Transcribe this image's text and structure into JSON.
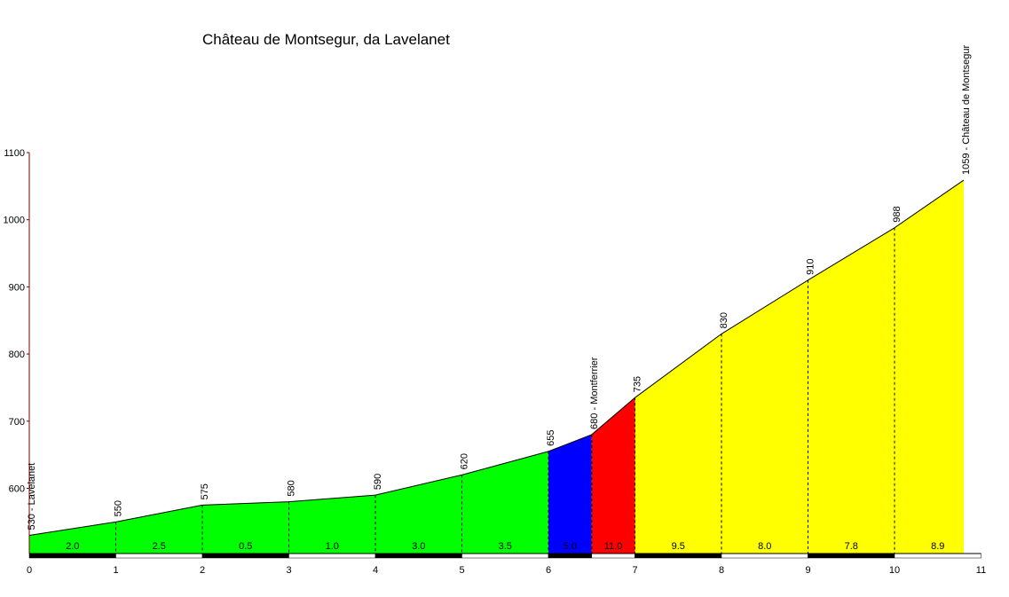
{
  "chart_data": {
    "type": "area",
    "title": "Château de Montsegur, da Lavelanet",
    "xlabel": "",
    "ylabel": "",
    "xlim": [
      0,
      11
    ],
    "ylim": [
      500,
      1100
    ],
    "x_ticks": [
      "0",
      "1",
      "2",
      "3",
      "4",
      "5",
      "6",
      "7",
      "8",
      "9",
      "10",
      "11"
    ],
    "y_ticks": [
      "600",
      "700",
      "800",
      "900",
      "1000",
      "1100"
    ],
    "profile": [
      {
        "x": 0,
        "y": 530
      },
      {
        "x": 1,
        "y": 550
      },
      {
        "x": 2,
        "y": 575
      },
      {
        "x": 3,
        "y": 580
      },
      {
        "x": 4,
        "y": 590
      },
      {
        "x": 5,
        "y": 620
      },
      {
        "x": 6,
        "y": 655
      },
      {
        "x": 6.5,
        "y": 680
      },
      {
        "x": 7,
        "y": 735
      },
      {
        "x": 8,
        "y": 830
      },
      {
        "x": 9,
        "y": 910
      },
      {
        "x": 10,
        "y": 988
      },
      {
        "x": 10.8,
        "y": 1059
      }
    ],
    "point_labels": [
      {
        "x": 0,
        "text": "530 - Lavelanet"
      },
      {
        "x": 1,
        "text": "550"
      },
      {
        "x": 2,
        "text": "575"
      },
      {
        "x": 3,
        "text": "580"
      },
      {
        "x": 4,
        "text": "590"
      },
      {
        "x": 5,
        "text": "620"
      },
      {
        "x": 6,
        "text": "655"
      },
      {
        "x": 6.5,
        "text": "680 - Montferrier"
      },
      {
        "x": 7,
        "text": "735"
      },
      {
        "x": 8,
        "text": "830"
      },
      {
        "x": 9,
        "text": "910"
      },
      {
        "x": 10,
        "text": "988"
      },
      {
        "x": 10.8,
        "text": "1059 - Château de Montsegur"
      }
    ],
    "segments": [
      {
        "from": 0,
        "to": 6,
        "color": "#00ff00"
      },
      {
        "from": 6,
        "to": 6.5,
        "color": "#0000ff"
      },
      {
        "from": 6.5,
        "to": 7,
        "color": "#ff0000"
      },
      {
        "from": 7,
        "to": 10.8,
        "color": "#ffff00"
      }
    ],
    "gradients": [
      {
        "x0": 0,
        "x1": 1,
        "label": "2.0"
      },
      {
        "x0": 1,
        "x1": 2,
        "label": "2.5"
      },
      {
        "x0": 2,
        "x1": 3,
        "label": "0.5"
      },
      {
        "x0": 3,
        "x1": 4,
        "label": "1.0"
      },
      {
        "x0": 4,
        "x1": 5,
        "label": "3.0"
      },
      {
        "x0": 5,
        "x1": 6,
        "label": "3.5"
      },
      {
        "x0": 6,
        "x1": 6.5,
        "label": "5.0"
      },
      {
        "x0": 6.5,
        "x1": 7,
        "label": "11.0"
      },
      {
        "x0": 7,
        "x1": 8,
        "label": "9.5"
      },
      {
        "x0": 8,
        "x1": 9,
        "label": "8.0"
      },
      {
        "x0": 9,
        "x1": 10,
        "label": "7.8"
      },
      {
        "x0": 10,
        "x1": 11,
        "label": "8.9"
      }
    ],
    "colors": {
      "axis": "#800000",
      "line": "#000000",
      "bar_dark": "#000000",
      "bar_light": "#ffffff"
    }
  }
}
